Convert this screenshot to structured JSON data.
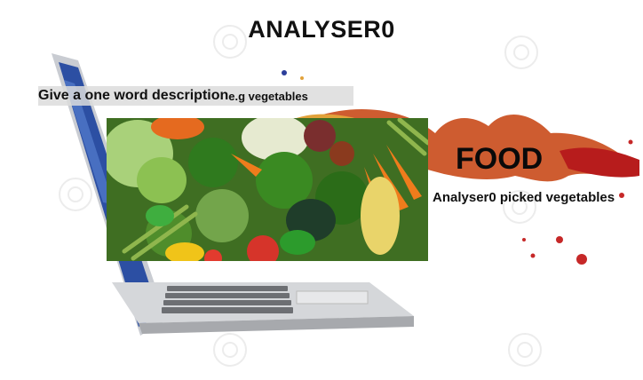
{
  "app": {
    "title": "ANALYSER0"
  },
  "prompt": {
    "main_text": "Give a one word description",
    "example_text": "e.g vegetables"
  },
  "result": {
    "label": "FOOD",
    "caption": "Analyser0 picked vegetables"
  },
  "colors": {
    "accent_red": "#c62828",
    "accent_orange": "#e07b1a",
    "screen_blue": "#2c4fa3"
  },
  "icons": [
    "watermark-swirl-icon"
  ]
}
